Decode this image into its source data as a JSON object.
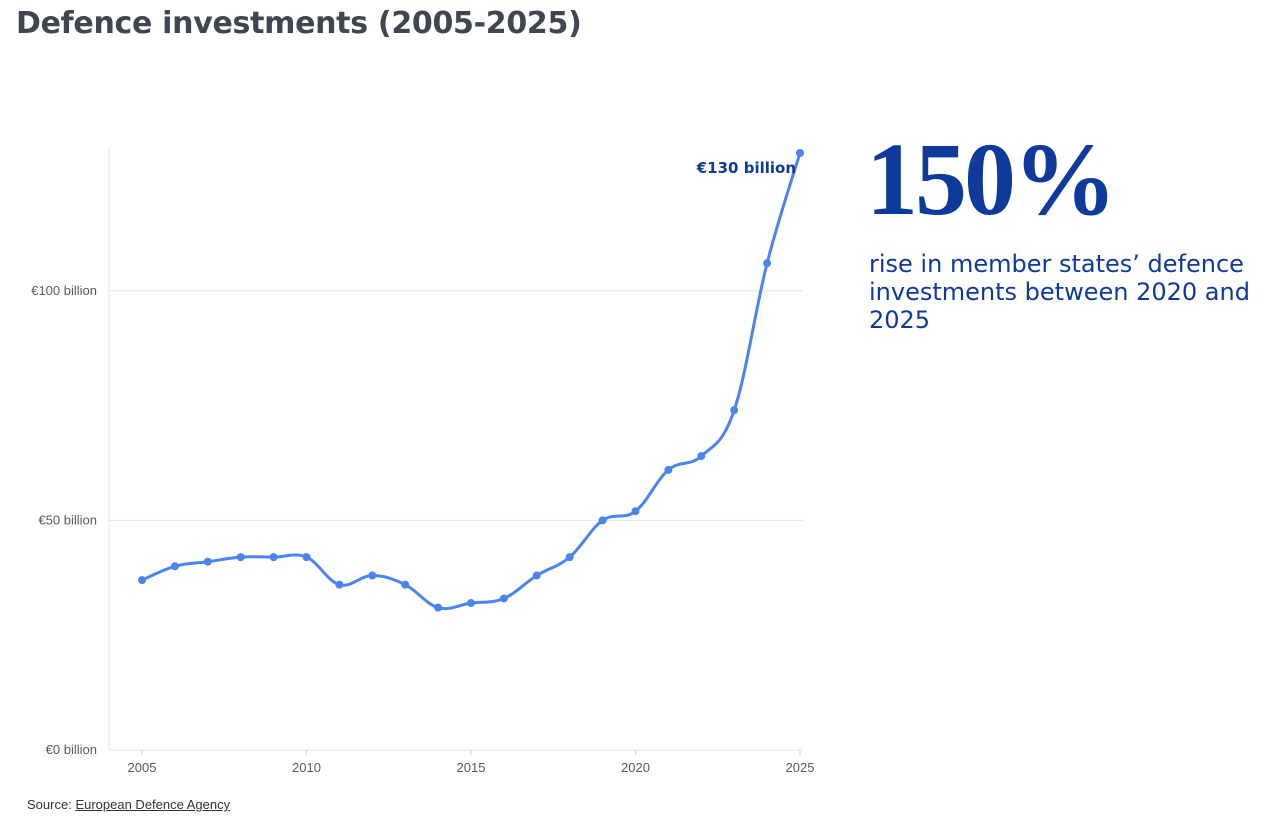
{
  "title": "Defence investments (2005-2025)",
  "callout": {
    "figure": "150%",
    "text": "rise in member states’ defence investments between 2020 and 2025"
  },
  "source": {
    "label": "Source:",
    "link_text": "European Defence Agency"
  },
  "colors": {
    "line": "#4a84ee",
    "callout": "#0e3a9b",
    "title": "#3f4650",
    "grid": "#e6e6e6"
  },
  "chart_data": {
    "type": "line",
    "x": [
      2005,
      2006,
      2007,
      2008,
      2009,
      2010,
      2011,
      2012,
      2013,
      2014,
      2015,
      2016,
      2017,
      2018,
      2019,
      2020,
      2021,
      2022,
      2023,
      2024,
      2025
    ],
    "series": [
      {
        "values": [
          37,
          40,
          41,
          42,
          42,
          42,
          36,
          38,
          36,
          31,
          32,
          33,
          38,
          42,
          50,
          52,
          61,
          64,
          74,
          106,
          130
        ]
      }
    ],
    "xlim": [
      2004,
      2025
    ],
    "ylim": [
      0,
      130
    ],
    "xticks": [
      "2005",
      "2010",
      "2015",
      "2020",
      "2025"
    ],
    "yticks": [
      {
        "value": 0,
        "label": "€0 billion"
      },
      {
        "value": 50,
        "label": "€50 billion"
      },
      {
        "value": 100,
        "label": "€100 billion"
      }
    ],
    "annotation": {
      "x": 2025,
      "value": 130,
      "label": "€130 billion"
    },
    "grid": true
  }
}
